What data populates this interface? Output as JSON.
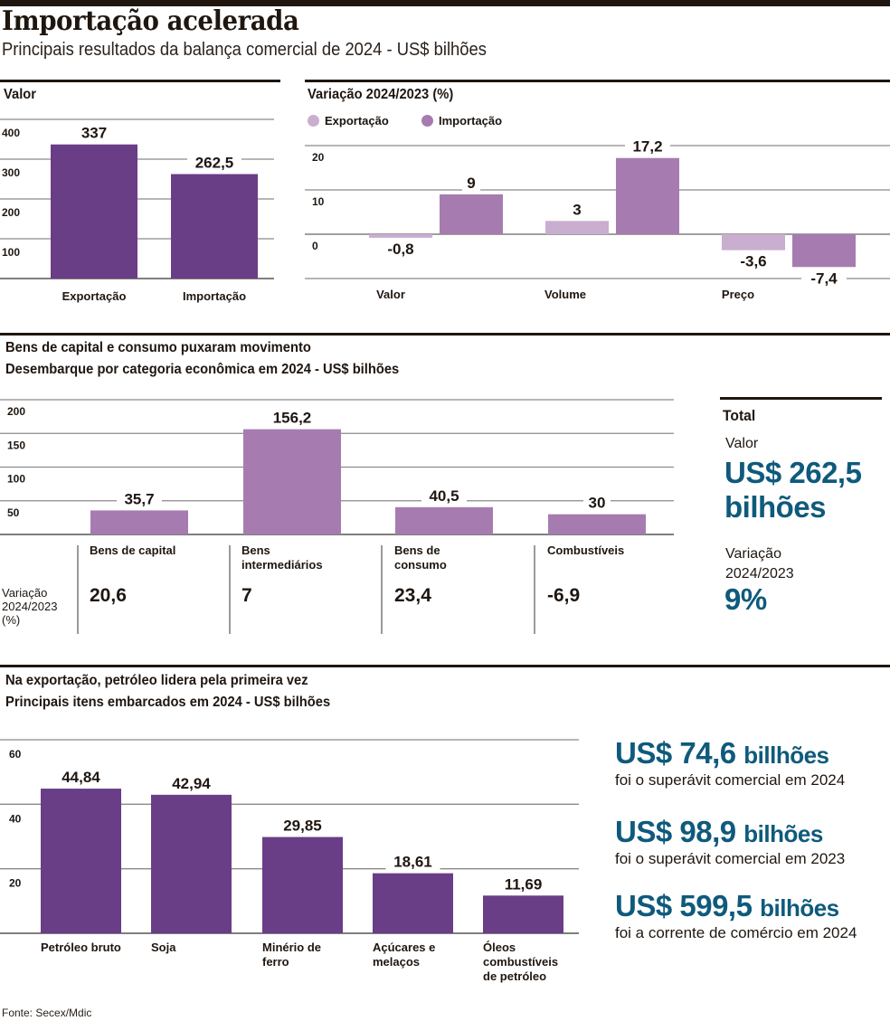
{
  "header": {
    "title": "Importação acelerada",
    "subtitle": "Principais resultados da balança comercial de 2024 - US$ bilhões"
  },
  "colors": {
    "dark_purple": "#6a3d87",
    "mid_purple": "#a67cb0",
    "light_purple": "#c9aed0",
    "highlight_blue": "#0f5a7c",
    "rule": "#1f1610",
    "grid": "#8a8a8a"
  },
  "panels": {
    "valor": {
      "heading": "Valor"
    },
    "variacao": {
      "heading": "Variação 2024/2023 (%)",
      "legend": [
        {
          "label": "Exportação",
          "color": "#c9aed0"
        },
        {
          "label": "Importação",
          "color": "#a67cb0"
        }
      ]
    },
    "categorias": {
      "heading_line1": "Bens de capital e consumo puxaram movimento",
      "heading_line2": "Desembarque por categoria econômica em 2024 - US$ bilhões",
      "variation_label_lines": [
        "Variação",
        "2024/2023",
        "(%)"
      ],
      "categories": [
        {
          "name_lines": [
            "Bens de capital"
          ],
          "variation": "20,6"
        },
        {
          "name_lines": [
            "Bens",
            "intermediários"
          ],
          "variation": "7"
        },
        {
          "name_lines": [
            "Bens de",
            "consumo"
          ],
          "variation": "23,4"
        },
        {
          "name_lines": [
            "Combustíveis"
          ],
          "variation": "-6,9"
        }
      ],
      "total": {
        "heading": "Total",
        "value_label": "Valor",
        "value_line1": "US$ 262,5",
        "value_line2": "bilhões",
        "variation_label_line1": "Variação",
        "variation_label_line2": "2024/2023",
        "variation_value": "9%"
      }
    },
    "exportacao": {
      "heading_line1": "Na exportação, petróleo lidera pela primeira vez",
      "heading_line2": "Principais itens embarcados em 2024 - US$ bilhões",
      "highlights": [
        {
          "amount": "US$ 74,6",
          "unit": "billhões",
          "note": "foi o superávit comercial em 2024"
        },
        {
          "amount": "US$ 98,9",
          "unit": "bilhões",
          "note": "foi o superávit comercial em 2023"
        },
        {
          "amount": "US$ 599,5",
          "unit": "bilhões",
          "note": "foi a corrente de comércio em 2024"
        }
      ]
    }
  },
  "source": "Fonte: Secex/Mdic",
  "chart_data": [
    {
      "id": "valor",
      "type": "bar",
      "title": "Valor",
      "categories": [
        "Exportação",
        "Importação"
      ],
      "values": [
        337,
        262.5
      ],
      "value_labels": [
        "337",
        "262,5"
      ],
      "yticks": [
        100,
        200,
        300,
        400
      ],
      "ylim": [
        0,
        400
      ],
      "grid": true,
      "color": "#6a3d87"
    },
    {
      "id": "variacao",
      "type": "bar",
      "title": "Variação 2024/2023 (%)",
      "categories": [
        "Valor",
        "Volume",
        "Preço"
      ],
      "series": [
        {
          "name": "Exportação",
          "values": [
            -0.8,
            3,
            -3.6
          ],
          "value_labels": [
            "-0,8",
            "3",
            "-3,6"
          ],
          "color": "#c9aed0"
        },
        {
          "name": "Importação",
          "values": [
            9,
            17.2,
            -7.4
          ],
          "value_labels": [
            "9",
            "17,2",
            "-7,4"
          ],
          "color": "#a67cb0"
        }
      ],
      "yticks": [
        0,
        10,
        20
      ],
      "ylim": [
        -10,
        20
      ],
      "grid": true,
      "legend": "top-left"
    },
    {
      "id": "categorias",
      "type": "bar",
      "title": "Desembarque por categoria econômica em 2024 - US$ bilhões",
      "categories": [
        "Bens de capital",
        "Bens intermediários",
        "Bens de consumo",
        "Combustíveis"
      ],
      "values": [
        35.7,
        156.2,
        40.5,
        30
      ],
      "value_labels": [
        "35,7",
        "156,2",
        "40,5",
        "30"
      ],
      "yticks": [
        50,
        100,
        150,
        200
      ],
      "ylim": [
        0,
        200
      ],
      "grid": true,
      "color": "#a67cb0"
    },
    {
      "id": "exportacao",
      "type": "bar",
      "title": "Principais itens embarcados em 2024 - US$ bilhões",
      "categories": [
        "Petróleo bruto",
        "Soja",
        "Minério de ferro",
        "Açúcares e melaços",
        "Óleos combustíveis de petróleo"
      ],
      "category_label_lines": [
        [
          "Petróleo bruto"
        ],
        [
          "Soja"
        ],
        [
          "Minério de",
          "ferro"
        ],
        [
          "Açúcares e",
          "melaços"
        ],
        [
          "Óleos",
          "combustíveis",
          "de petróleo"
        ]
      ],
      "values": [
        44.84,
        42.94,
        29.85,
        18.61,
        11.69
      ],
      "value_labels": [
        "44,84",
        "42,94",
        "29,85",
        "18,61",
        "11,69"
      ],
      "yticks": [
        20,
        40,
        60
      ],
      "ylim": [
        0,
        60
      ],
      "grid": true,
      "color": "#6a3d87"
    }
  ]
}
